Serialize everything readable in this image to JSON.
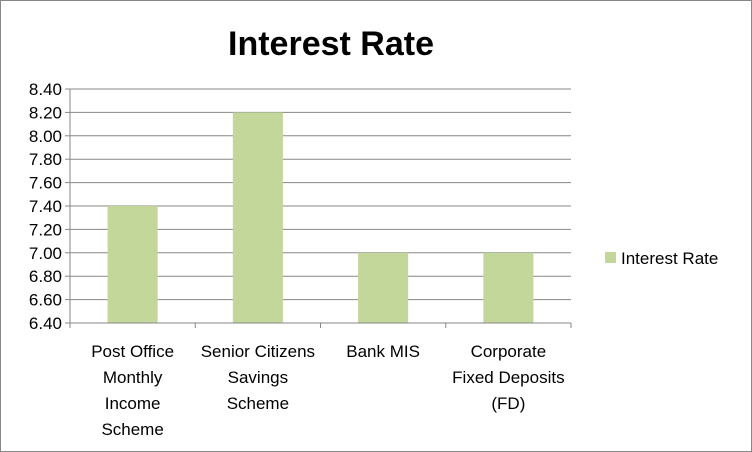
{
  "chart_data": {
    "type": "bar",
    "title": "Interest Rate",
    "xlabel": "",
    "ylabel": "",
    "categories": [
      [
        "Post Office",
        "Monthly",
        "Income",
        "Scheme"
      ],
      [
        "Senior Citizens",
        "Savings",
        "Scheme"
      ],
      [
        "Bank MIS"
      ],
      [
        "Corporate",
        "Fixed Deposits",
        "(FD)"
      ]
    ],
    "series": [
      {
        "name": "Interest Rate",
        "values": [
          7.4,
          8.2,
          7.0,
          7.0
        ],
        "color": "#c4d79b"
      }
    ],
    "ylim": [
      6.4,
      8.4
    ],
    "yticks": [
      "6.40",
      "6.60",
      "6.80",
      "7.00",
      "7.20",
      "7.40",
      "7.60",
      "7.80",
      "8.00",
      "8.20",
      "8.40"
    ],
    "grid": true,
    "legend_position": "right"
  }
}
